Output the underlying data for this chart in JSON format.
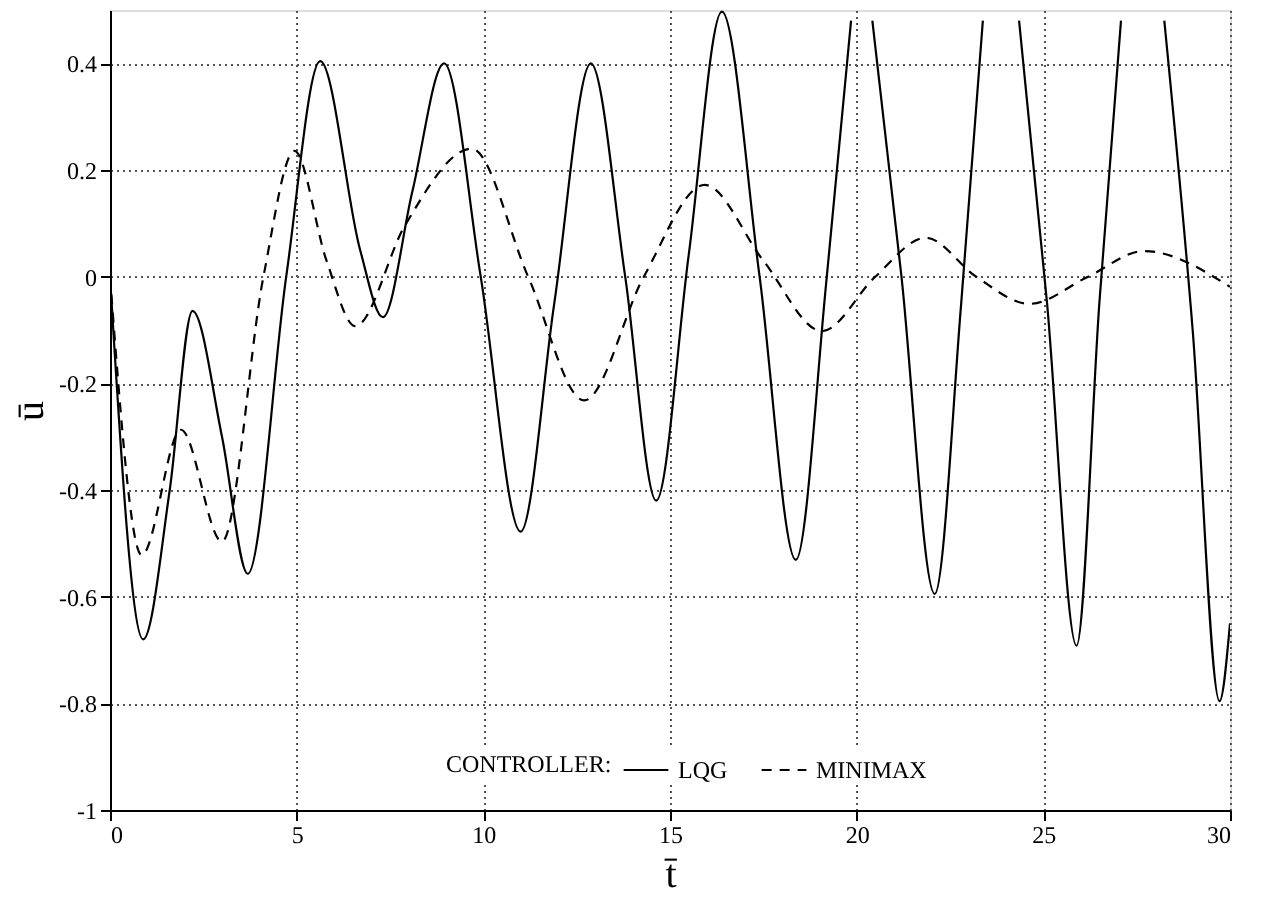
{
  "chart_data": {
    "type": "line",
    "xlabel": "t̄",
    "ylabel": "ū",
    "legend_title": "CONTROLLER:",
    "xlim": [
      0,
      30
    ],
    "ylim": [
      -1,
      0.5
    ],
    "xticks": [
      0,
      5,
      10,
      15,
      20,
      25,
      30
    ],
    "yticks": [
      -1,
      -0.8,
      -0.6,
      -0.4,
      -0.2,
      0,
      0.2,
      0.4
    ],
    "grid": true,
    "legend": "bottom",
    "series": [
      {
        "name": "LQG",
        "color": "#000000",
        "line_style": "solid",
        "x": [
          0,
          0.89,
          1.6,
          2.21,
          3.0,
          3.69,
          4.72,
          5.63,
          6.7,
          7.31,
          8.1,
          8.95,
          9.93,
          11.0,
          11.9,
          12.88,
          13.8,
          14.63,
          15.5,
          16.39,
          17.4,
          18.37,
          19.2,
          19.85,
          20.1,
          20.42,
          21.2,
          22.09,
          22.8,
          23.38,
          23.8,
          24.35,
          25.1,
          25.89,
          26.5,
          27.08,
          27.6,
          28.24,
          29.0,
          29.72,
          30
        ],
        "values": [
          0,
          -0.68,
          -0.4,
          -0.064,
          -0.3,
          -0.557,
          0,
          0.404,
          0.05,
          -0.076,
          0.16,
          0.4,
          0,
          -0.478,
          -0.05,
          0.4,
          0,
          -0.42,
          0.04,
          0.497,
          0,
          -0.531,
          0,
          0.48,
          null,
          0.48,
          0,
          -0.595,
          -0.05,
          0.48,
          null,
          0.48,
          -0.05,
          -0.692,
          -0.05,
          0.48,
          null,
          0.48,
          -0.1,
          -0.796,
          -0.65
        ]
      },
      {
        "name": "MINIMAX",
        "color": "#000000",
        "line_style": "dashed",
        "x": [
          0,
          0.85,
          1.9,
          3.0,
          4.11,
          4.94,
          5.8,
          6.57,
          7.9,
          9.69,
          11.2,
          12.7,
          14.3,
          15.93,
          17.5,
          19.07,
          20.5,
          21.85,
          23.2,
          24.63,
          26.2,
          27.69,
          30
        ],
        "values": [
          0,
          -0.522,
          -0.287,
          -0.497,
          0,
          0.236,
          0.03,
          -0.093,
          0.096,
          0.24,
          0,
          -0.232,
          0,
          0.172,
          0.03,
          -0.102,
          0,
          0.073,
          0,
          -0.051,
          0,
          0.048,
          -0.019
        ]
      }
    ]
  }
}
